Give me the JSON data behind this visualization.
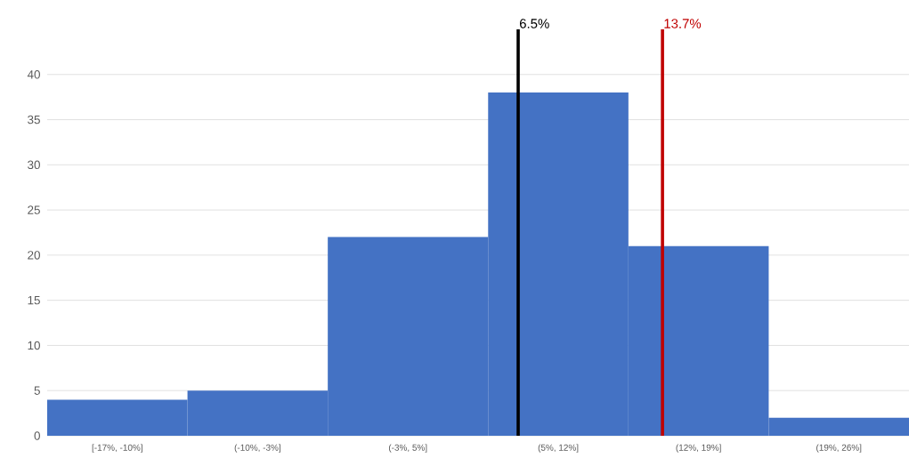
{
  "chart_data": {
    "type": "histogram",
    "bins": [
      -17,
      -10,
      -3,
      5,
      12,
      19,
      26
    ],
    "values": [
      4,
      5,
      22,
      38,
      21,
      2
    ],
    "categories": [
      "[-17%, -10%]",
      "(-10%, -3%]",
      "(-3%, 5%]",
      "(5%, 12%]",
      "(12%, 19%]",
      "(19%, 26%]"
    ],
    "color": "#4472c4",
    "xlim": [
      -17,
      26
    ],
    "ylim": [
      0,
      45
    ],
    "yticks": [
      0,
      5,
      10,
      15,
      20,
      25,
      30,
      35,
      40
    ],
    "grid": "y",
    "ref_lines": [
      {
        "axis": "x",
        "value": 6.5,
        "label": "6.5%",
        "color": "#000000"
      },
      {
        "axis": "x",
        "value": 13.7,
        "label": "13.7%",
        "color": "#c00000"
      }
    ]
  }
}
